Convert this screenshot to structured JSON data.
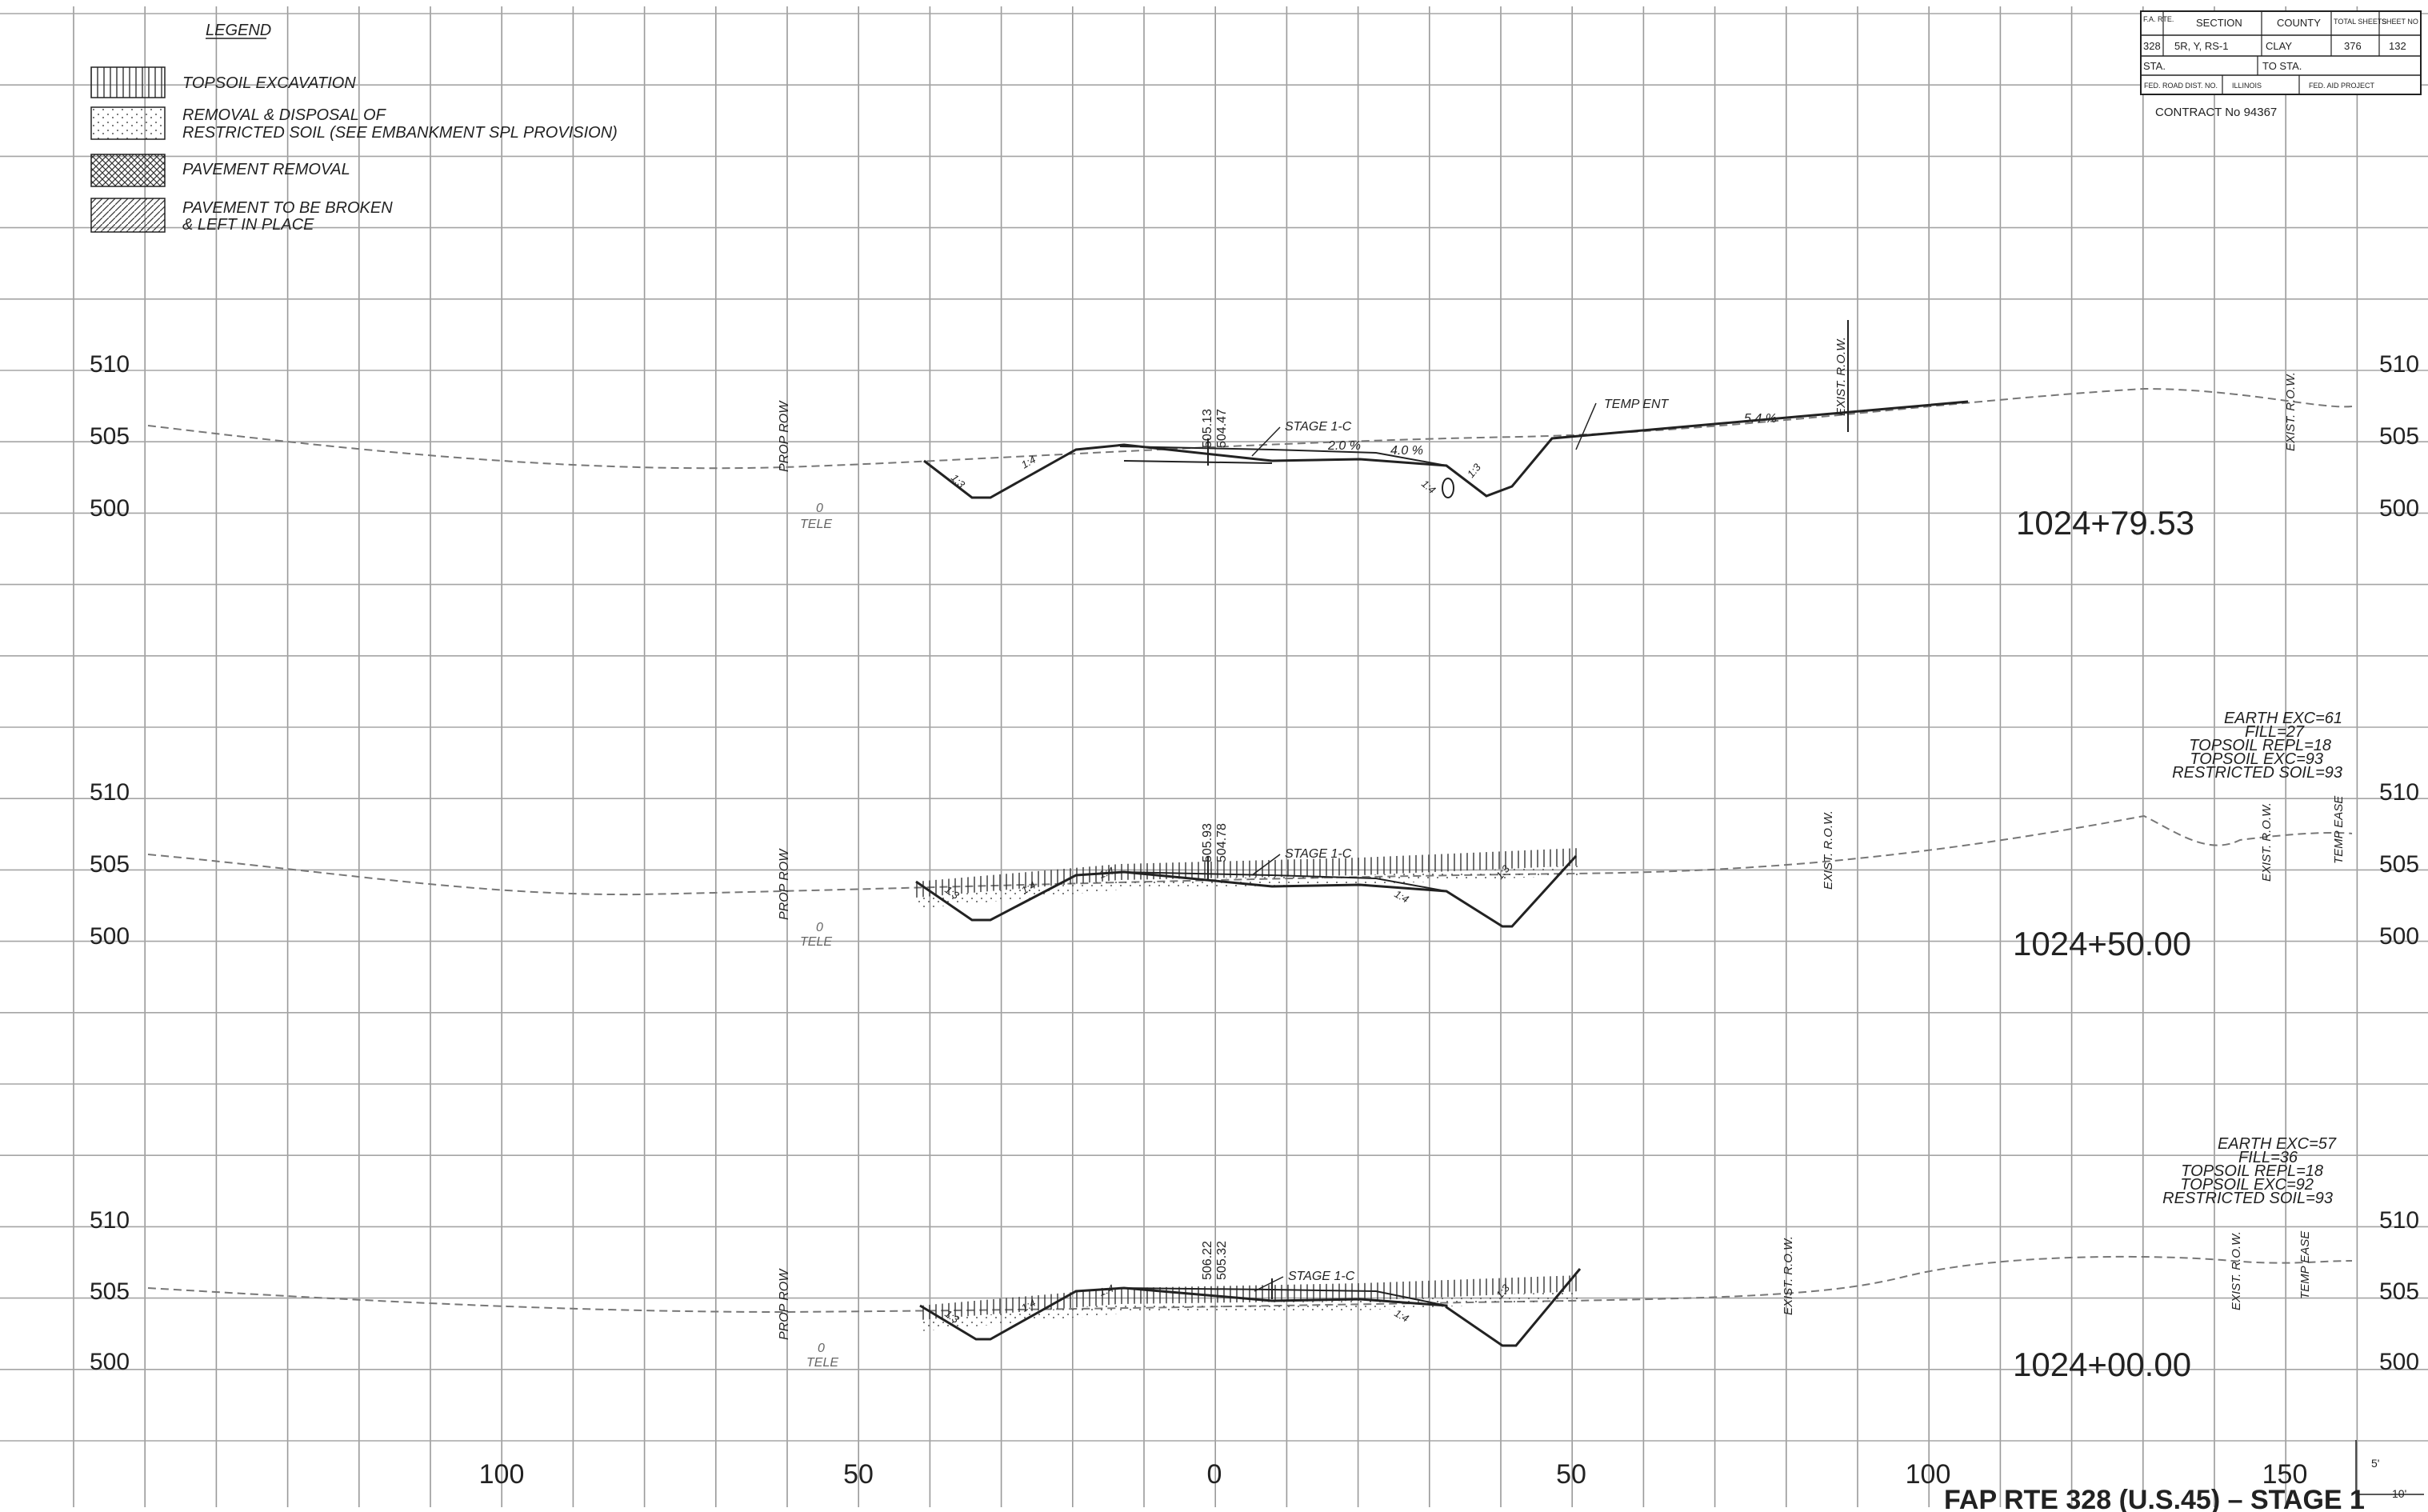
{
  "legend": {
    "title": "LEGEND",
    "items": [
      {
        "lines": [
          "TOPSOIL EXCAVATION"
        ],
        "pattern": "vertical-hatch"
      },
      {
        "lines": [
          "REMOVAL & DISPOSAL OF",
          "RESTRICTED SOIL (SEE EMBANKMENT SPL PROVISION)"
        ],
        "pattern": "dots"
      },
      {
        "lines": [
          "PAVEMENT REMOVAL"
        ],
        "pattern": "crosshatch"
      },
      {
        "lines": [
          "PAVEMENT TO BE BROKEN",
          "& LEFT IN PLACE"
        ],
        "pattern": "diagonal-hatch"
      }
    ]
  },
  "title_block": {
    "h_rte": "F.A. RTE.",
    "h_section": "SECTION",
    "h_county": "COUNTY",
    "h_total": "TOTAL SHEETS",
    "h_sheet": "SHEET NO",
    "rte": "328",
    "section": "5R, Y, RS-1",
    "county": "CLAY",
    "total": "376",
    "sheet": "132",
    "sta": "STA.",
    "to_sta": "TO STA.",
    "fed_road": "FED. ROAD DIST. NO.",
    "state": "ILLINOIS",
    "fed_aid": "FED. AID PROJECT",
    "contract": "CONTRACT No 94367"
  },
  "sections": [
    {
      "station": "1024+79.53",
      "elevations": [
        "510",
        "505",
        "500"
      ],
      "prop_row": "PROP ROW",
      "tele": [
        "0",
        "TELE"
      ],
      "crown": [
        "505.13",
        "504.47"
      ],
      "stage": "STAGE 1-C",
      "slopes": [
        "2.0 %",
        "4.0 %",
        "5.4 %"
      ],
      "temp_ent": "TEMP ENT",
      "side_slopes": [
        "1:3",
        "1:4",
        "1:4",
        "1:3"
      ],
      "exist_row": [
        "EXIST. R.O.W.",
        "EXIST. R.O.W."
      ],
      "quantities": []
    },
    {
      "station": "1024+50.00",
      "elevations": [
        "510",
        "505",
        "500"
      ],
      "prop_row": "PROP ROW",
      "tele": [
        "0",
        "TELE"
      ],
      "crown": [
        "505.93",
        "504.78"
      ],
      "stage": "STAGE 1-C",
      "slopes": [],
      "temp_ent": "",
      "side_slopes": [
        "1:3",
        "1:4",
        "1:4",
        "1:4",
        "1:3"
      ],
      "exist_row": [
        "EXIST. R.O.W.",
        "EXIST. R.O.W."
      ],
      "temp_ease": "TEMP EASE",
      "quantities": [
        "EARTH EXC=61",
        "FILL=27",
        "TOPSOIL REPL=18",
        "TOPSOIL EXC=93",
        "RESTRICTED SOIL=93"
      ]
    },
    {
      "station": "1024+00.00",
      "elevations": [
        "510",
        "505",
        "500"
      ],
      "prop_row": "PROP ROW",
      "tele": [
        "0",
        "TELE"
      ],
      "crown": [
        "506.22",
        "505.32"
      ],
      "stage": "STAGE 1-C",
      "slopes": [],
      "temp_ent": "",
      "side_slopes": [
        "1:3",
        "1:4",
        "1:4",
        "1:4",
        "1:3"
      ],
      "exist_row": [
        "EXIST. R.O.W.",
        "EXIST. R.O.W."
      ],
      "temp_ease": "TEMP EASE",
      "quantities": [
        "EARTH EXC=57",
        "FILL=36",
        "TOPSOIL REPL=18",
        "TOPSOIL EXC=92",
        "RESTRICTED SOIL=93"
      ]
    }
  ],
  "x_axis": [
    "100",
    "50",
    "0",
    "50",
    "100",
    "150"
  ],
  "scale": {
    "v": "5'",
    "h": "10'"
  },
  "sheet_title": "FAP RTE 328 (U.S.45) – STAGE 1"
}
